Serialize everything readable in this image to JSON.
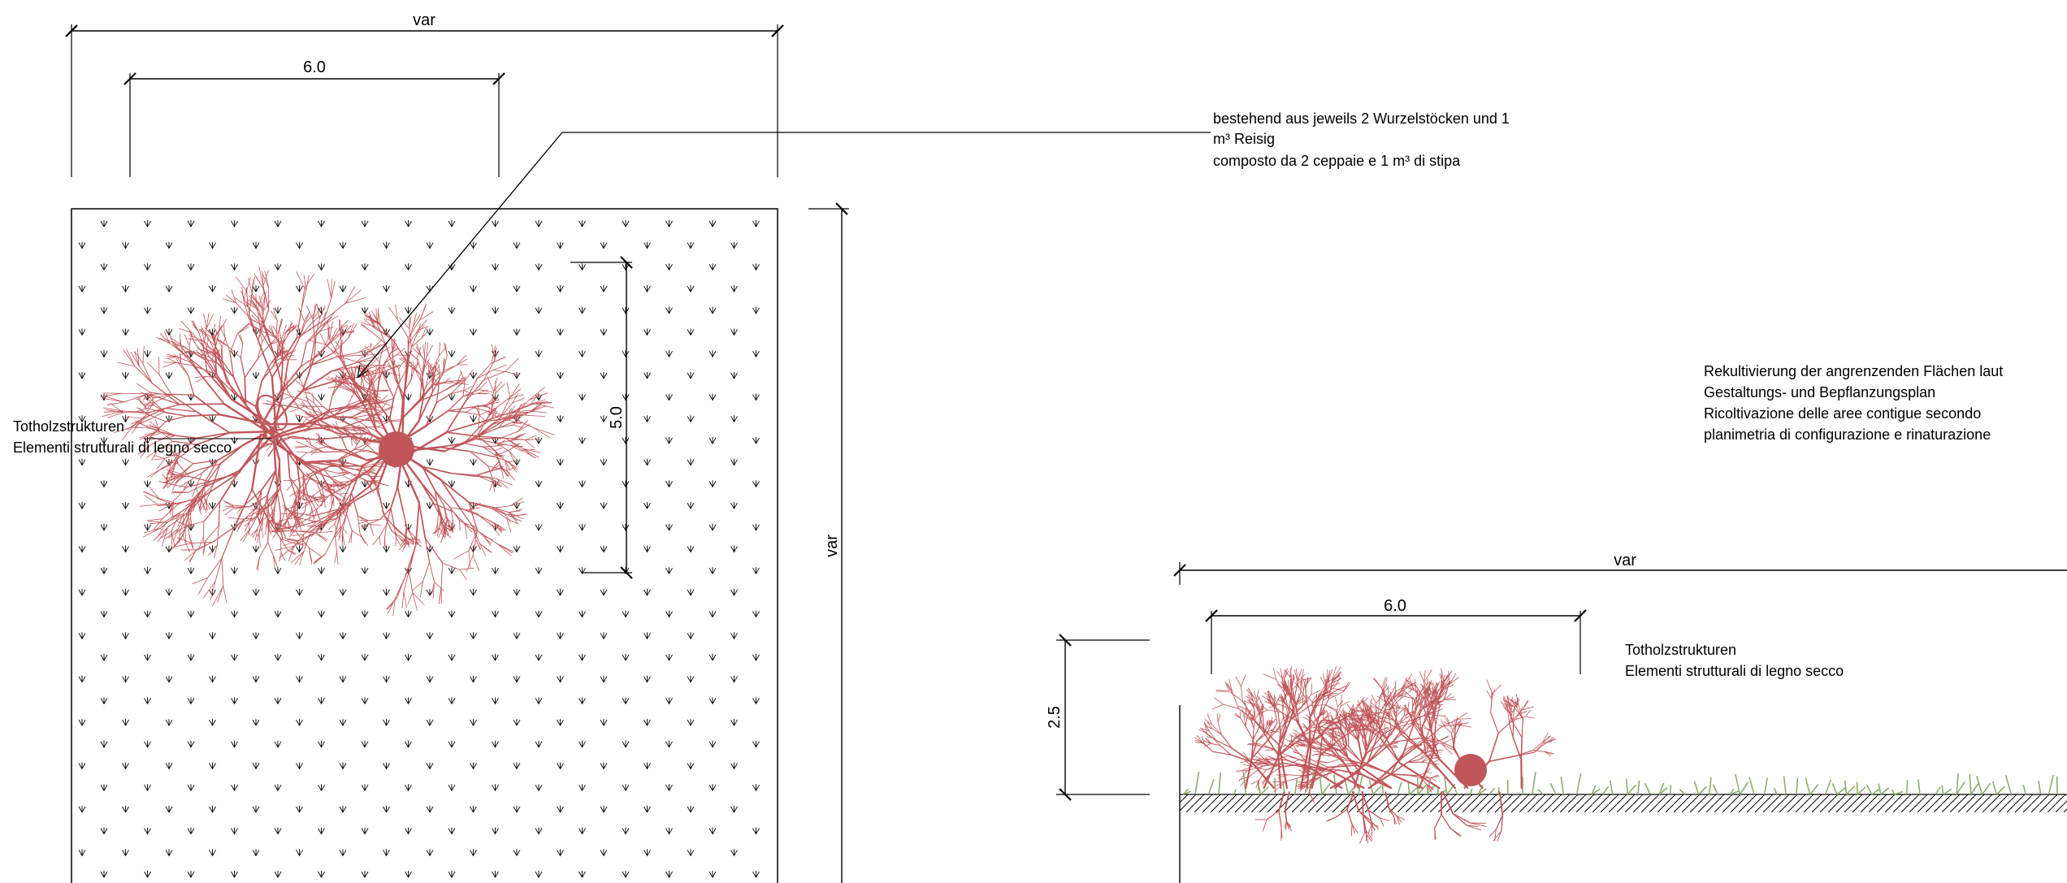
{
  "plan_view": {
    "dim_total_width": "var",
    "dim_heap_width": "6.0",
    "dim_heap_depth": "5.0",
    "dim_total_height": "var",
    "label_deadwood_de": "Totholzstrukturen",
    "label_deadwood_it": "Elementi strutturali di legno secco",
    "callout_line1": "bestehend aus jeweils 2 Wurzelstöcken und 1",
    "callout_line2": "m³ Reisig",
    "callout_line3": "composto da 2 ceppaie e 1 m³ di stipa"
  },
  "note": {
    "line1": "Rekultivierung der angrenzenden Flächen laut",
    "line2": "Gestaltungs- und Bepflanzungsplan",
    "line3": "Ricoltivazione delle aree contigue secondo",
    "line4": "planimetria di configurazione e rinaturazione"
  },
  "section_view": {
    "dim_total_width": "var",
    "dim_heap_width": "6.0",
    "dim_heap_height": "2.5",
    "label_deadwood_de": "Totholzstrukturen",
    "label_deadwood_it": "Elementi strutturali di legno secco"
  },
  "colors": {
    "brush": "#c0565a",
    "grass": "#8cae6e",
    "line": "#000000"
  },
  "icons": {
    "plan_brush": "brushwood-heap-plan-icon",
    "section_brush": "brushwood-heap-section-icon",
    "meadow": "meadow-symbol-icon",
    "grass": "grass-icon"
  }
}
